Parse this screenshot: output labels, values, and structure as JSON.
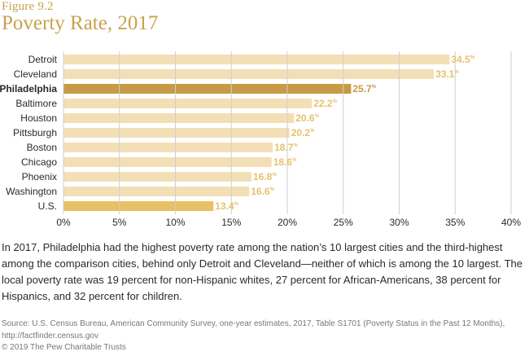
{
  "figure_label": "Figure 9.2",
  "colors": {
    "bar": "#f3dfb6",
    "bar_highlight": "#c79a45",
    "bar_reference": "#e8c066",
    "value_label": "#e6c16f",
    "value_highlight": "#c79a45",
    "grid": "#cfcfcf"
  },
  "chart_data": {
    "type": "bar",
    "orientation": "horizontal",
    "title": "Poverty Rate, 2017",
    "categories": [
      "Detroit",
      "Cleveland",
      "Philadelphia",
      "Baltimore",
      "Houston",
      "Pittsburgh",
      "Boston",
      "Chicago",
      "Phoenix",
      "Washington",
      "U.S."
    ],
    "values": [
      34.5,
      33.1,
      25.7,
      22.2,
      20.6,
      20.2,
      18.7,
      18.6,
      16.8,
      16.6,
      13.4
    ],
    "value_labels": [
      "34.5",
      "33.1",
      "25.7",
      "22.2",
      "20.6",
      "20.2",
      "18.7",
      "18.6",
      "16.8",
      "16.6",
      "13.4"
    ],
    "value_suffix": "%",
    "highlight": "Philadelphia",
    "reference": "U.S.",
    "x_ticks": [
      0,
      5,
      10,
      15,
      20,
      25,
      30,
      35,
      40
    ],
    "x_tick_labels": [
      "0%",
      "5%",
      "10%",
      "15%",
      "20%",
      "25%",
      "30%",
      "35%",
      "40%"
    ],
    "xlim": [
      0,
      40
    ],
    "xlabel": "",
    "ylabel": "",
    "grid": true
  },
  "caption": "In 2017, Philadelphia had the highest poverty rate among the nation’s 10 largest cities and the third-highest among the comparison cities, behind only Detroit and Cleveland—neither of which is among the 10 largest. The local poverty rate was 19 percent for non-Hispanic whites, 27 percent for African-Americans, 38 percent for Hispanics, and 32 percent for children.",
  "source": "Source: U.S. Census Bureau, American Community Survey, one-year estimates, 2017, Table S1701 (Poverty Status in the Past 12 Months), http://factfinder.census.gov",
  "copyright": "© 2019 The Pew Charitable Trusts"
}
